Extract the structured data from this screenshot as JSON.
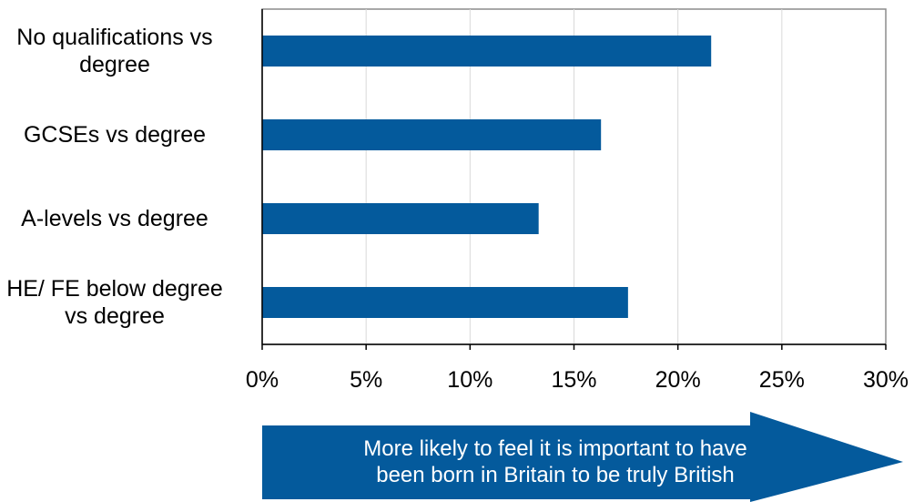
{
  "chart_data": {
    "type": "bar",
    "orientation": "horizontal",
    "categories": [
      "No qualifications vs\ndegree",
      "GCSEs vs degree",
      "A-levels vs degree",
      "HE/ FE below degree\nvs degree"
    ],
    "values": [
      21.6,
      16.3,
      13.3,
      17.6
    ],
    "xlim": [
      0,
      30
    ],
    "xticks": [
      "0%",
      "5%",
      "10%",
      "15%",
      "20%",
      "25%",
      "30%"
    ],
    "grid": true,
    "bar_color": "#045a9c",
    "title": "",
    "xlabel": "",
    "ylabel": ""
  },
  "annotation": {
    "text": "More likely to feel it is important to have\nbeen born in Britain to be truly British",
    "color": "#045a9c"
  }
}
